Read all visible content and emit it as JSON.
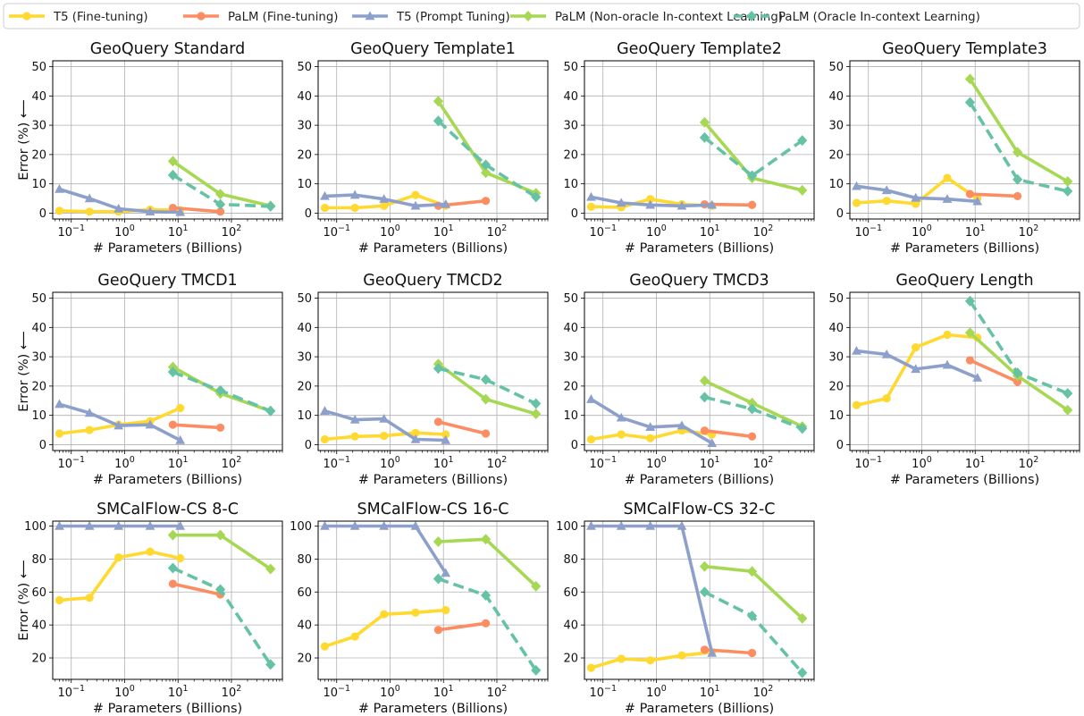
{
  "legend": [
    {
      "label": "T5 (Fine-tuning)",
      "color": "#ffd92f",
      "marker": "circle",
      "dash": false
    },
    {
      "label": "PaLM (Fine-tuning)",
      "color": "#fc8d62",
      "marker": "circle",
      "dash": false
    },
    {
      "label": "T5 (Prompt Tuning)",
      "color": "#8da0cb",
      "marker": "triangle",
      "dash": false
    },
    {
      "label": "PaLM (Non-oracle In-context Learning)",
      "color": "#a6d854",
      "marker": "diamond",
      "dash": false
    },
    {
      "label": "PaLM (Oracle In-context Learning)",
      "color": "#66c2a5",
      "marker": "diamond",
      "dash": true
    }
  ],
  "common": {
    "xlabel": "# Parameters (Billions)",
    "ylabel": "Error (%) ⟵",
    "xscale": "log",
    "xlim": [
      0.045,
      900
    ],
    "xticks": [
      {
        "value": 0.1,
        "base": "10",
        "exp": "−1"
      },
      {
        "value": 1,
        "base": "10",
        "exp": "0"
      },
      {
        "value": 10,
        "base": "10",
        "exp": "1"
      },
      {
        "value": 100,
        "base": "10",
        "exp": "2"
      }
    ],
    "grid": true
  },
  "chart_data": [
    {
      "type": "line",
      "title": "GeoQuery Standard",
      "ylim": [
        -2,
        52
      ],
      "yticks": [
        0,
        10,
        20,
        30,
        40,
        50
      ],
      "series": [
        {
          "name": "T5 (Fine-tuning)",
          "x": [
            0.06,
            0.22,
            0.77,
            3,
            11
          ],
          "y": [
            0.8,
            0.5,
            0.5,
            1.2,
            1.0
          ]
        },
        {
          "name": "PaLM (Fine-tuning)",
          "x": [
            8,
            62
          ],
          "y": [
            1.8,
            0.5
          ]
        },
        {
          "name": "T5 (Prompt Tuning)",
          "x": [
            0.06,
            0.22,
            0.77,
            3,
            11
          ],
          "y": [
            8.2,
            5.0,
            1.5,
            0.5,
            0.3
          ]
        },
        {
          "name": "PaLM (Non-oracle In-context Learning)",
          "x": [
            8,
            62,
            540
          ],
          "y": [
            17.7,
            6.5,
            2.5
          ]
        },
        {
          "name": "PaLM (Oracle In-context Learning)",
          "x": [
            8,
            62,
            540
          ],
          "y": [
            13.0,
            3.0,
            2.3
          ]
        }
      ]
    },
    {
      "type": "line",
      "title": "GeoQuery Template1",
      "ylim": [
        -2,
        52
      ],
      "yticks": [
        0,
        10,
        20,
        30,
        40,
        50
      ],
      "series": [
        {
          "name": "T5 (Fine-tuning)",
          "x": [
            0.06,
            0.22,
            0.77,
            3,
            11
          ],
          "y": [
            1.8,
            1.8,
            2.5,
            6.2,
            2.5
          ]
        },
        {
          "name": "PaLM (Fine-tuning)",
          "x": [
            8,
            62
          ],
          "y": [
            2.5,
            4.2
          ]
        },
        {
          "name": "T5 (Prompt Tuning)",
          "x": [
            0.06,
            0.22,
            0.77,
            3,
            11
          ],
          "y": [
            5.8,
            6.2,
            4.8,
            2.5,
            3.0
          ]
        },
        {
          "name": "PaLM (Non-oracle In-context Learning)",
          "x": [
            8,
            62,
            540
          ],
          "y": [
            38.2,
            13.8,
            6.8
          ]
        },
        {
          "name": "PaLM (Oracle In-context Learning)",
          "x": [
            8,
            62,
            540
          ],
          "y": [
            31.5,
            16.5,
            5.5
          ]
        }
      ]
    },
    {
      "type": "line",
      "title": "GeoQuery Template2",
      "ylim": [
        -2,
        52
      ],
      "yticks": [
        0,
        10,
        20,
        30,
        40,
        50
      ],
      "series": [
        {
          "name": "T5 (Fine-tuning)",
          "x": [
            0.06,
            0.22,
            0.77,
            3,
            11
          ],
          "y": [
            2.2,
            2.0,
            4.8,
            3.0,
            2.5
          ]
        },
        {
          "name": "PaLM (Fine-tuning)",
          "x": [
            8,
            62
          ],
          "y": [
            3.0,
            2.8
          ]
        },
        {
          "name": "T5 (Prompt Tuning)",
          "x": [
            0.06,
            0.22,
            0.77,
            3,
            11
          ],
          "y": [
            5.5,
            3.5,
            2.8,
            2.5,
            2.8
          ]
        },
        {
          "name": "PaLM (Non-oracle In-context Learning)",
          "x": [
            8,
            62,
            540
          ],
          "y": [
            31.0,
            12.0,
            7.8
          ]
        },
        {
          "name": "PaLM (Oracle In-context Learning)",
          "x": [
            8,
            62,
            540
          ],
          "y": [
            25.8,
            12.8,
            24.8
          ]
        }
      ]
    },
    {
      "type": "line",
      "title": "GeoQuery Template3",
      "ylim": [
        -2,
        52
      ],
      "yticks": [
        0,
        10,
        20,
        30,
        40,
        50
      ],
      "series": [
        {
          "name": "T5 (Fine-tuning)",
          "x": [
            0.06,
            0.22,
            0.77,
            3,
            11
          ],
          "y": [
            3.5,
            4.2,
            3.2,
            12.0,
            5.0
          ]
        },
        {
          "name": "PaLM (Fine-tuning)",
          "x": [
            8,
            62
          ],
          "y": [
            6.5,
            5.8
          ]
        },
        {
          "name": "T5 (Prompt Tuning)",
          "x": [
            0.06,
            0.22,
            0.77,
            3,
            11
          ],
          "y": [
            9.2,
            7.8,
            5.2,
            4.8,
            4.0
          ]
        },
        {
          "name": "PaLM (Non-oracle In-context Learning)",
          "x": [
            8,
            62,
            540
          ],
          "y": [
            45.8,
            20.8,
            10.8
          ]
        },
        {
          "name": "PaLM (Oracle In-context Learning)",
          "x": [
            8,
            62,
            540
          ],
          "y": [
            37.8,
            11.5,
            7.5
          ]
        }
      ]
    },
    {
      "type": "line",
      "title": "GeoQuery TMCD1",
      "ylim": [
        -2,
        52
      ],
      "yticks": [
        0,
        10,
        20,
        30,
        40,
        50
      ],
      "series": [
        {
          "name": "T5 (Fine-tuning)",
          "x": [
            0.06,
            0.22,
            0.77,
            3,
            11
          ],
          "y": [
            3.8,
            5.0,
            6.8,
            8.0,
            12.5
          ]
        },
        {
          "name": "PaLM (Fine-tuning)",
          "x": [
            8,
            62
          ],
          "y": [
            6.8,
            5.8
          ]
        },
        {
          "name": "T5 (Prompt Tuning)",
          "x": [
            0.06,
            0.22,
            0.77,
            3,
            11
          ],
          "y": [
            13.8,
            10.8,
            6.5,
            6.8,
            1.5
          ]
        },
        {
          "name": "PaLM (Non-oracle In-context Learning)",
          "x": [
            8,
            62,
            540
          ],
          "y": [
            26.5,
            17.5,
            11.5
          ]
        },
        {
          "name": "PaLM (Oracle In-context Learning)",
          "x": [
            8,
            62,
            540
          ],
          "y": [
            24.8,
            18.5,
            11.5
          ]
        }
      ]
    },
    {
      "type": "line",
      "title": "GeoQuery TMCD2",
      "ylim": [
        -2,
        52
      ],
      "yticks": [
        0,
        10,
        20,
        30,
        40,
        50
      ],
      "series": [
        {
          "name": "T5 (Fine-tuning)",
          "x": [
            0.06,
            0.22,
            0.77,
            3,
            11
          ],
          "y": [
            1.8,
            2.8,
            3.0,
            4.0,
            3.5
          ]
        },
        {
          "name": "PaLM (Fine-tuning)",
          "x": [
            8,
            62
          ],
          "y": [
            7.8,
            3.8
          ]
        },
        {
          "name": "T5 (Prompt Tuning)",
          "x": [
            0.06,
            0.22,
            0.77,
            3,
            11
          ],
          "y": [
            11.5,
            8.5,
            8.8,
            1.8,
            1.5
          ]
        },
        {
          "name": "PaLM (Non-oracle In-context Learning)",
          "x": [
            8,
            62,
            540
          ],
          "y": [
            27.5,
            15.5,
            10.5
          ]
        },
        {
          "name": "PaLM (Oracle In-context Learning)",
          "x": [
            8,
            62,
            540
          ],
          "y": [
            26.0,
            22.2,
            14.0
          ]
        }
      ]
    },
    {
      "type": "line",
      "title": "GeoQuery TMCD3",
      "ylim": [
        -2,
        52
      ],
      "yticks": [
        0,
        10,
        20,
        30,
        40,
        50
      ],
      "series": [
        {
          "name": "T5 (Fine-tuning)",
          "x": [
            0.06,
            0.22,
            0.77,
            3,
            11
          ],
          "y": [
            1.8,
            3.5,
            2.2,
            4.8,
            3.5
          ]
        },
        {
          "name": "PaLM (Fine-tuning)",
          "x": [
            8,
            62
          ],
          "y": [
            4.8,
            2.8
          ]
        },
        {
          "name": "T5 (Prompt Tuning)",
          "x": [
            0.06,
            0.22,
            0.77,
            3,
            11
          ],
          "y": [
            15.5,
            9.2,
            6.0,
            6.5,
            0.5
          ]
        },
        {
          "name": "PaLM (Non-oracle In-context Learning)",
          "x": [
            8,
            62,
            540
          ],
          "y": [
            21.8,
            14.2,
            6.2
          ]
        },
        {
          "name": "PaLM (Oracle In-context Learning)",
          "x": [
            8,
            62,
            540
          ],
          "y": [
            16.2,
            12.2,
            5.5
          ]
        }
      ]
    },
    {
      "type": "line",
      "title": "GeoQuery Length",
      "ylim": [
        -2,
        52
      ],
      "yticks": [
        0,
        10,
        20,
        30,
        40,
        50
      ],
      "series": [
        {
          "name": "T5 (Fine-tuning)",
          "x": [
            0.06,
            0.22,
            0.77,
            3,
            11
          ],
          "y": [
            13.5,
            15.8,
            33.2,
            37.5,
            36.5
          ]
        },
        {
          "name": "PaLM (Fine-tuning)",
          "x": [
            8,
            62
          ],
          "y": [
            28.8,
            21.5
          ]
        },
        {
          "name": "T5 (Prompt Tuning)",
          "x": [
            0.06,
            0.22,
            0.77,
            3,
            11
          ],
          "y": [
            32.0,
            30.8,
            25.8,
            27.2,
            22.8
          ]
        },
        {
          "name": "PaLM (Non-oracle In-context Learning)",
          "x": [
            8,
            62,
            540
          ],
          "y": [
            38.2,
            23.5,
            11.8
          ]
        },
        {
          "name": "PaLM (Oracle In-context Learning)",
          "x": [
            8,
            62,
            540
          ],
          "y": [
            49.0,
            24.5,
            17.5
          ]
        }
      ]
    },
    {
      "type": "line",
      "title": "SMCalFlow-CS 8-C",
      "ylim": [
        7,
        103
      ],
      "yticks": [
        20,
        40,
        60,
        80,
        100
      ],
      "series": [
        {
          "name": "T5 (Fine-tuning)",
          "x": [
            0.06,
            0.22,
            0.77,
            3,
            11
          ],
          "y": [
            55,
            56.5,
            81,
            84.5,
            80.5
          ]
        },
        {
          "name": "PaLM (Fine-tuning)",
          "x": [
            8,
            62
          ],
          "y": [
            65,
            58.5
          ]
        },
        {
          "name": "T5 (Prompt Tuning)",
          "x": [
            0.06,
            0.22,
            0.77,
            3,
            11
          ],
          "y": [
            100,
            100,
            100,
            100,
            100
          ]
        },
        {
          "name": "PaLM (Non-oracle In-context Learning)",
          "x": [
            8,
            62,
            540
          ],
          "y": [
            94.5,
            94.5,
            74
          ]
        },
        {
          "name": "PaLM (Oracle In-context Learning)",
          "x": [
            8,
            62,
            540
          ],
          "y": [
            74.5,
            61.5,
            16
          ]
        }
      ]
    },
    {
      "type": "line",
      "title": "SMCalFlow-CS 16-C",
      "ylim": [
        7,
        103
      ],
      "yticks": [
        20,
        40,
        60,
        80,
        100
      ],
      "series": [
        {
          "name": "T5 (Fine-tuning)",
          "x": [
            0.06,
            0.22,
            0.77,
            3,
            11
          ],
          "y": [
            27,
            33,
            46.5,
            47.5,
            49
          ]
        },
        {
          "name": "PaLM (Fine-tuning)",
          "x": [
            8,
            62
          ],
          "y": [
            37,
            41
          ]
        },
        {
          "name": "T5 (Prompt Tuning)",
          "x": [
            0.06,
            0.22,
            0.77,
            3,
            11
          ],
          "y": [
            100,
            100,
            100,
            100,
            71.5
          ]
        },
        {
          "name": "PaLM (Non-oracle In-context Learning)",
          "x": [
            8,
            62,
            540
          ],
          "y": [
            90.5,
            92,
            63.5
          ]
        },
        {
          "name": "PaLM (Oracle In-context Learning)",
          "x": [
            8,
            62,
            540
          ],
          "y": [
            68,
            58,
            12.5
          ]
        }
      ]
    },
    {
      "type": "line",
      "title": "SMCalFlow-CS 32-C",
      "ylim": [
        7,
        103
      ],
      "yticks": [
        20,
        40,
        60,
        80,
        100
      ],
      "series": [
        {
          "name": "T5 (Fine-tuning)",
          "x": [
            0.06,
            0.22,
            0.77,
            3,
            11
          ],
          "y": [
            14,
            19.5,
            18.5,
            21.5,
            23.5
          ]
        },
        {
          "name": "PaLM (Fine-tuning)",
          "x": [
            8,
            62
          ],
          "y": [
            25,
            23
          ]
        },
        {
          "name": "T5 (Prompt Tuning)",
          "x": [
            0.06,
            0.22,
            0.77,
            3,
            11
          ],
          "y": [
            100,
            100,
            100,
            100,
            23
          ]
        },
        {
          "name": "PaLM (Non-oracle In-context Learning)",
          "x": [
            8,
            62,
            540
          ],
          "y": [
            75.5,
            72.5,
            44
          ]
        },
        {
          "name": "PaLM (Oracle In-context Learning)",
          "x": [
            8,
            62,
            540
          ],
          "y": [
            60,
            45.5,
            11
          ]
        }
      ]
    }
  ]
}
